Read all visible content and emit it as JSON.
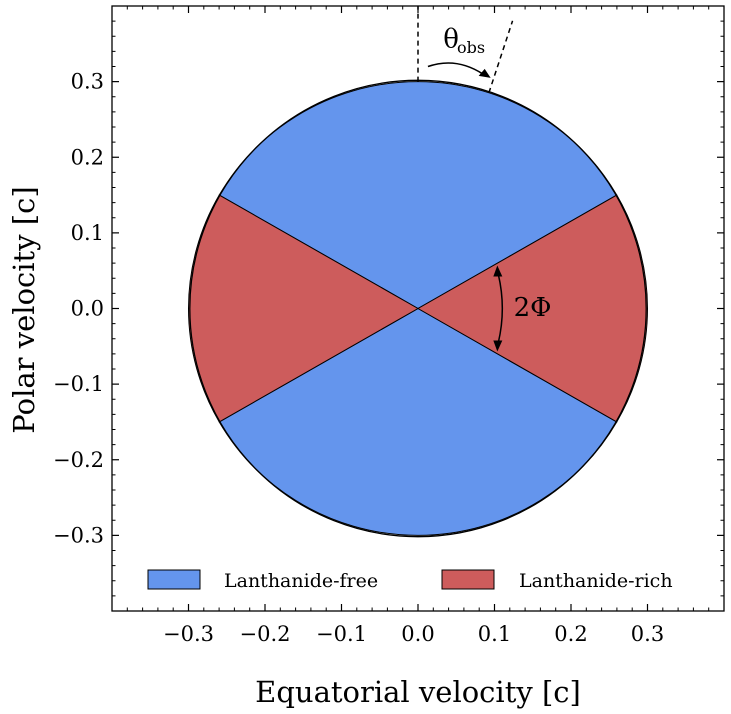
{
  "chart_data": {
    "type": "diagram",
    "title": "",
    "xlabel": "Equatorial velocity [c]",
    "ylabel": "Polar velocity [c]",
    "xlim": [
      -0.4,
      0.4
    ],
    "ylim": [
      -0.4,
      0.4
    ],
    "x_ticks": [
      -0.3,
      -0.2,
      -0.1,
      0.0,
      0.1,
      0.2,
      0.3
    ],
    "y_ticks": [
      -0.3,
      -0.2,
      -0.1,
      0.0,
      0.1,
      0.2,
      0.3
    ],
    "x_tick_labels": [
      "−0.3",
      "−0.2",
      "−0.1",
      "0.0",
      "0.1",
      "0.2",
      "0.3"
    ],
    "y_tick_labels": [
      "−0.3",
      "−0.2",
      "−0.1",
      "0.0",
      "0.1",
      "0.2",
      "0.3"
    ],
    "minor_tick_step": 0.02,
    "ejecta_radius": 0.3,
    "half_opening_angle_deg": 30,
    "observer_angle_deg": 18,
    "regions": [
      {
        "name": "Lanthanide-free",
        "color": "#6495ed"
      },
      {
        "name": "Lanthanide-rich",
        "color": "#cd5c5c"
      }
    ],
    "annotations": {
      "observer_symbol": "θ",
      "observer_subscript": "obs",
      "opening_label": "2Φ"
    },
    "legend": {
      "position": "lower-center",
      "entries": [
        "Lanthanide-free",
        "Lanthanide-rich"
      ]
    }
  }
}
